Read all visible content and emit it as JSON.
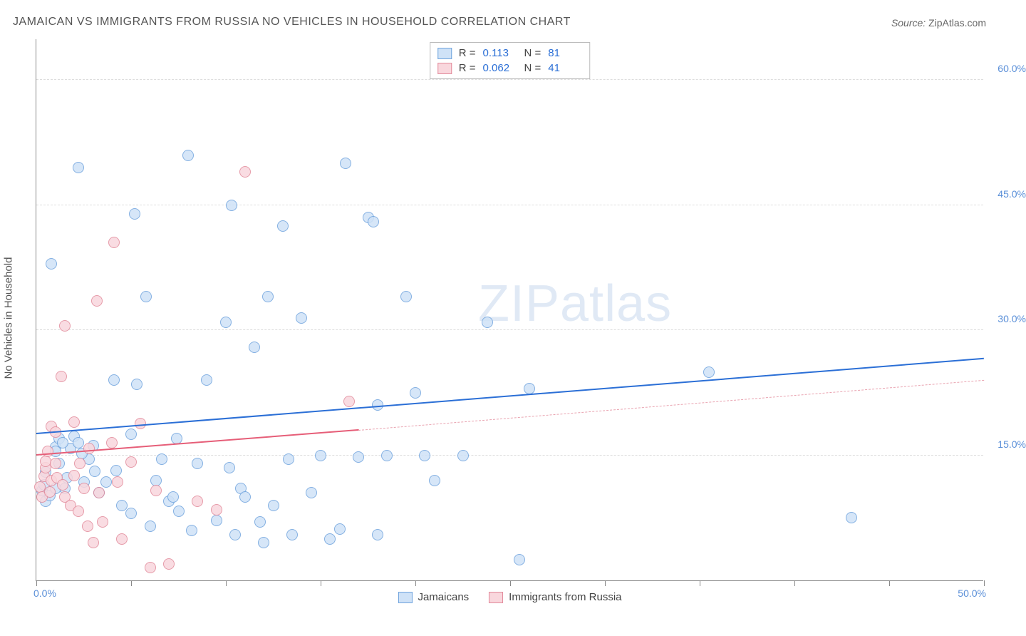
{
  "title": "JAMAICAN VS IMMIGRANTS FROM RUSSIA NO VEHICLES IN HOUSEHOLD CORRELATION CHART",
  "source_label": "Source:",
  "source_value": "ZipAtlas.com",
  "y_axis_title": "No Vehicles in Household",
  "watermark_a": "ZIP",
  "watermark_b": "atlas",
  "chart": {
    "type": "scatter",
    "xlim": [
      0,
      50
    ],
    "ylim": [
      0,
      65
    ],
    "x_ticks": [
      0,
      5,
      10,
      15,
      20,
      25,
      30,
      35,
      40,
      45,
      50
    ],
    "x_tick_labels_shown": {
      "0": "0.0%",
      "50": "50.0%"
    },
    "y_gridlines": [
      15,
      30,
      45,
      60
    ],
    "y_tick_labels": {
      "15": "15.0%",
      "30": "30.0%",
      "45": "45.0%",
      "60": "60.0%"
    },
    "background_color": "#ffffff",
    "grid_color": "#dddddd",
    "axis_color": "#888888",
    "label_color": "#5a8fd8",
    "point_radius": 8,
    "point_stroke_width": 1,
    "series": [
      {
        "name": "Jamaicans",
        "fill": "#cfe2f7",
        "stroke": "#6fa3dd",
        "r_label": "R =",
        "r_value": "0.113",
        "n_label": "N =",
        "n_value": "81",
        "trend": {
          "x1": 0,
          "y1": 17.5,
          "x2": 50,
          "y2": 26.5,
          "color": "#2b6fd6",
          "width": 2.5,
          "dash": false
        },
        "points": [
          [
            0.3,
            10.8
          ],
          [
            0.4,
            11.5
          ],
          [
            0.5,
            13.0
          ],
          [
            0.5,
            9.5
          ],
          [
            0.7,
            10.2
          ],
          [
            0.8,
            38.0
          ],
          [
            1.0,
            16.0
          ],
          [
            1.0,
            15.5
          ],
          [
            1.2,
            14.0
          ],
          [
            1.2,
            17.0
          ],
          [
            1.5,
            11.0
          ],
          [
            1.6,
            12.3
          ],
          [
            1.8,
            15.8
          ],
          [
            2.0,
            17.3
          ],
          [
            2.2,
            16.5
          ],
          [
            2.2,
            49.5
          ],
          [
            2.5,
            11.8
          ],
          [
            2.8,
            14.5
          ],
          [
            3.0,
            16.2
          ],
          [
            3.3,
            10.5
          ],
          [
            3.7,
            11.8
          ],
          [
            4.1,
            24.0
          ],
          [
            4.2,
            13.2
          ],
          [
            4.5,
            9.0
          ],
          [
            5.0,
            17.5
          ],
          [
            5.0,
            8.0
          ],
          [
            5.2,
            44.0
          ],
          [
            5.3,
            23.5
          ],
          [
            5.8,
            34.0
          ],
          [
            6.0,
            6.5
          ],
          [
            6.3,
            12.0
          ],
          [
            6.6,
            14.5
          ],
          [
            7.0,
            9.5
          ],
          [
            7.2,
            10.0
          ],
          [
            7.4,
            17.0
          ],
          [
            7.5,
            8.3
          ],
          [
            8.0,
            51.0
          ],
          [
            8.2,
            6.0
          ],
          [
            8.5,
            14.0
          ],
          [
            9.0,
            24.0
          ],
          [
            9.5,
            7.2
          ],
          [
            10.0,
            31.0
          ],
          [
            10.2,
            13.5
          ],
          [
            10.3,
            45.0
          ],
          [
            10.5,
            5.5
          ],
          [
            10.8,
            11.0
          ],
          [
            11.0,
            10.0
          ],
          [
            11.5,
            28.0
          ],
          [
            11.8,
            7.0
          ],
          [
            12.0,
            4.5
          ],
          [
            12.2,
            34.0
          ],
          [
            12.5,
            9.0
          ],
          [
            13.0,
            42.5
          ],
          [
            13.3,
            14.5
          ],
          [
            13.5,
            5.5
          ],
          [
            14.0,
            31.5
          ],
          [
            14.5,
            10.5
          ],
          [
            15.0,
            15.0
          ],
          [
            15.5,
            5.0
          ],
          [
            16.0,
            6.2
          ],
          [
            16.3,
            50.0
          ],
          [
            17.0,
            14.8
          ],
          [
            17.5,
            43.5
          ],
          [
            17.8,
            43.0
          ],
          [
            18.0,
            5.5
          ],
          [
            18.0,
            21.0
          ],
          [
            18.5,
            15.0
          ],
          [
            19.5,
            34.0
          ],
          [
            20.0,
            22.5
          ],
          [
            20.5,
            15.0
          ],
          [
            21.0,
            12.0
          ],
          [
            22.5,
            15.0
          ],
          [
            23.8,
            31.0
          ],
          [
            25.5,
            2.5
          ],
          [
            26.0,
            23.0
          ],
          [
            35.5,
            25.0
          ],
          [
            43.0,
            7.5
          ],
          [
            1.0,
            11.0
          ],
          [
            1.4,
            16.5
          ],
          [
            2.4,
            15.2
          ],
          [
            3.1,
            13.1
          ]
        ]
      },
      {
        "name": "Immigrants from Russia",
        "fill": "#f9d7dd",
        "stroke": "#e28a9b",
        "r_label": "R =",
        "r_value": "0.062",
        "n_label": "N =",
        "n_value": "41",
        "trend": {
          "x1": 0,
          "y1": 15.0,
          "x2": 17,
          "y2": 18.0,
          "color": "#e65e78",
          "width": 2,
          "dash": false
        },
        "trend_ext": {
          "x1": 17,
          "y1": 18.0,
          "x2": 50,
          "y2": 24.0,
          "color": "#e9a3b0",
          "width": 1,
          "dash": true
        },
        "points": [
          [
            0.2,
            11.2
          ],
          [
            0.3,
            10.0
          ],
          [
            0.4,
            12.5
          ],
          [
            0.5,
            13.5
          ],
          [
            0.5,
            14.3
          ],
          [
            0.6,
            15.5
          ],
          [
            0.7,
            10.6
          ],
          [
            0.8,
            12.0
          ],
          [
            0.8,
            18.5
          ],
          [
            1.0,
            14.0
          ],
          [
            1.0,
            17.8
          ],
          [
            1.1,
            12.3
          ],
          [
            1.3,
            24.5
          ],
          [
            1.4,
            11.5
          ],
          [
            1.5,
            10.0
          ],
          [
            1.5,
            30.5
          ],
          [
            1.8,
            9.0
          ],
          [
            2.0,
            12.6
          ],
          [
            2.0,
            19.0
          ],
          [
            2.2,
            8.3
          ],
          [
            2.3,
            14.0
          ],
          [
            2.5,
            11.0
          ],
          [
            2.7,
            6.5
          ],
          [
            2.8,
            15.8
          ],
          [
            3.0,
            4.5
          ],
          [
            3.2,
            33.5
          ],
          [
            3.3,
            10.5
          ],
          [
            3.5,
            7.0
          ],
          [
            4.0,
            16.5
          ],
          [
            4.1,
            40.5
          ],
          [
            4.3,
            11.8
          ],
          [
            4.5,
            5.0
          ],
          [
            5.0,
            14.2
          ],
          [
            5.5,
            18.8
          ],
          [
            6.0,
            1.5
          ],
          [
            6.3,
            10.8
          ],
          [
            7.0,
            2.0
          ],
          [
            8.5,
            9.5
          ],
          [
            9.5,
            8.5
          ],
          [
            11.0,
            49.0
          ],
          [
            16.5,
            21.5
          ]
        ]
      }
    ]
  }
}
